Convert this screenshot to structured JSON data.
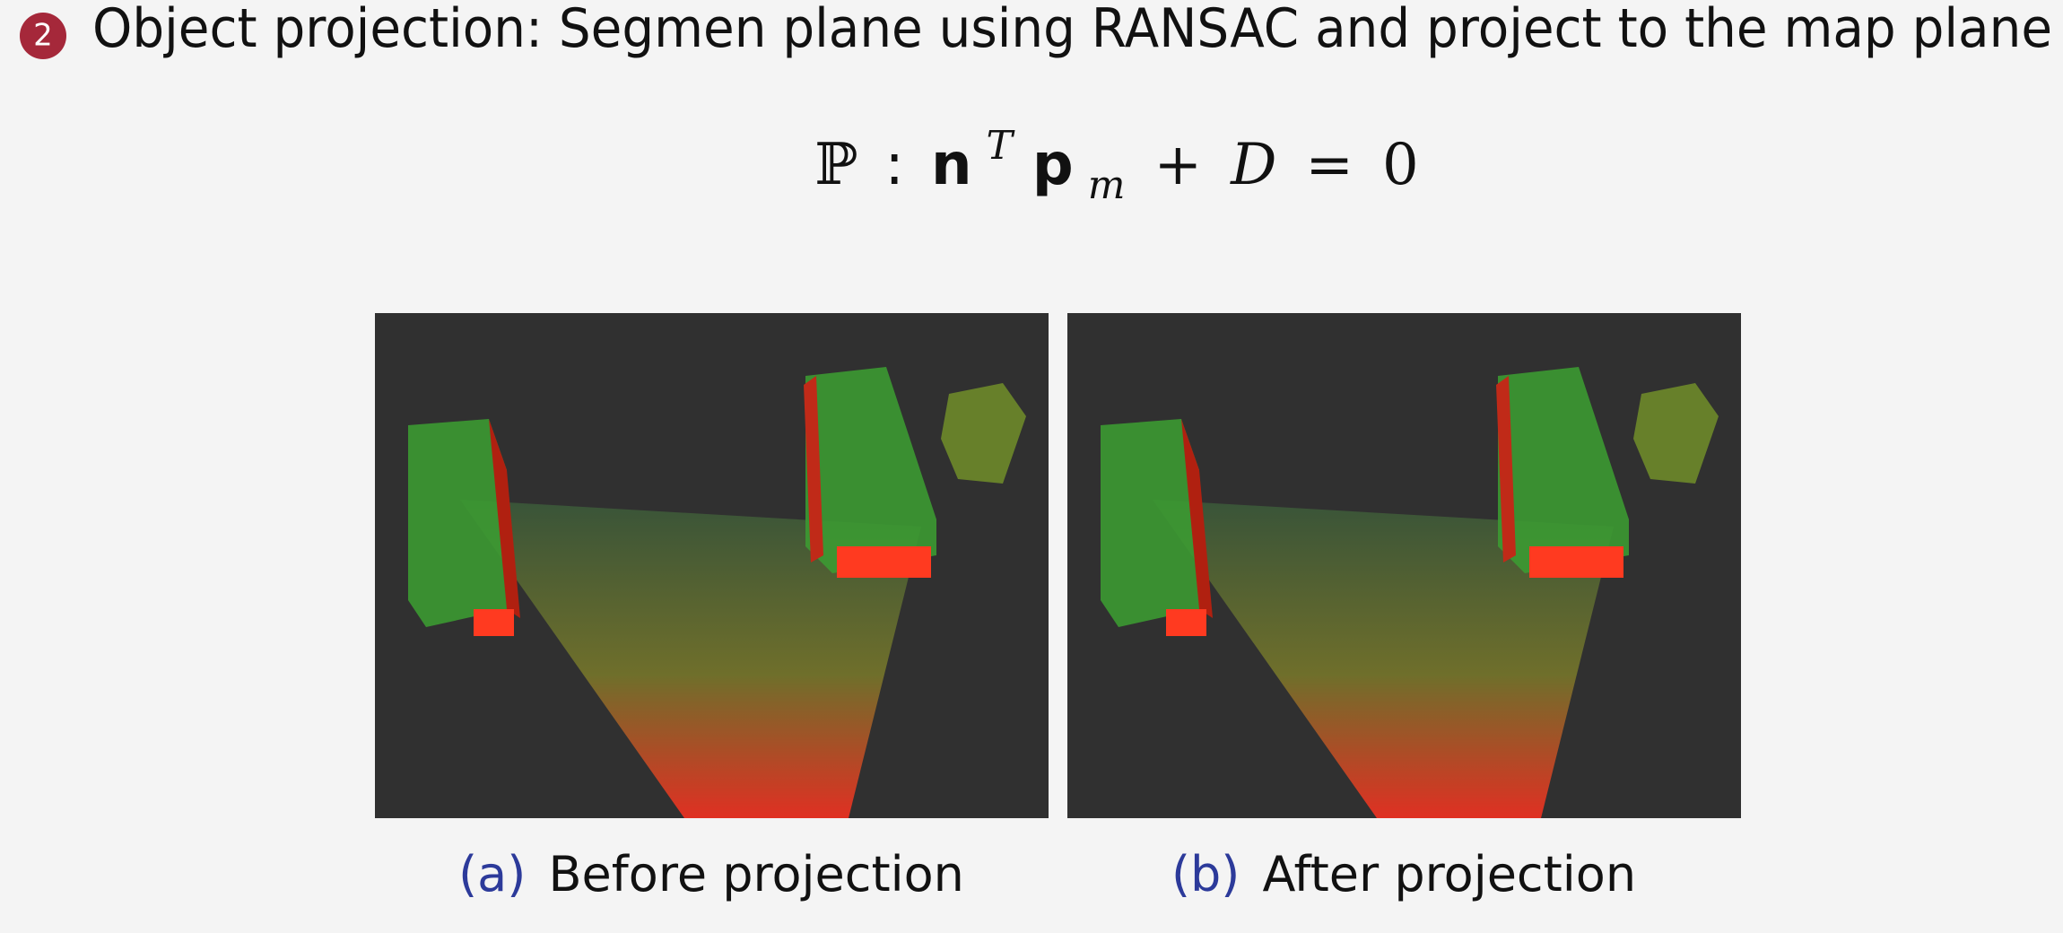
{
  "item": {
    "number": "2",
    "text": "Object projection: Segmen plane using RANSAC and project to the map plane"
  },
  "equation": [
    "ℙ",
    ":",
    "n",
    "T",
    "p",
    "m",
    "+",
    "D",
    "=",
    "0"
  ],
  "figures": [
    {
      "label": "(a)",
      "caption": "Before projection"
    },
    {
      "label": "(b)",
      "caption": "After projection"
    }
  ]
}
